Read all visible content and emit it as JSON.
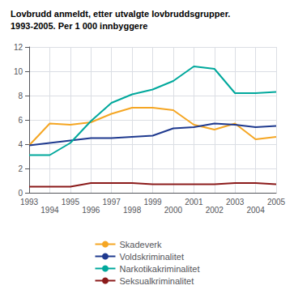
{
  "chart_data": {
    "type": "line",
    "title": "Lovbrudd anmeldt, etter utvalgte lovbruddsgrupper.",
    "subtitle": "1993-2005. Per 1 000 innbyggere",
    "x": [
      1993,
      1994,
      1995,
      1996,
      1997,
      1998,
      1999,
      2000,
      2001,
      2002,
      2003,
      2004,
      2005
    ],
    "series": [
      {
        "name": "Skadeverk",
        "color": "#F5A623",
        "values": [
          3.9,
          5.7,
          5.6,
          5.8,
          6.5,
          7.0,
          7.0,
          6.8,
          5.6,
          5.2,
          5.7,
          4.4,
          4.6
        ]
      },
      {
        "name": "Voldskriminalitet",
        "color": "#1F3A8F",
        "values": [
          3.9,
          4.1,
          4.3,
          4.5,
          4.5,
          4.6,
          4.7,
          5.3,
          5.4,
          5.7,
          5.6,
          5.4,
          5.5
        ]
      },
      {
        "name": "Narkotikakriminalitet",
        "color": "#00A89C",
        "values": [
          3.1,
          3.1,
          4.1,
          5.9,
          7.4,
          8.1,
          8.5,
          9.2,
          10.4,
          10.2,
          8.2,
          8.2,
          8.3
        ]
      },
      {
        "name": "Seksualkriminalitet",
        "color": "#8B1A1A",
        "values": [
          0.5,
          0.5,
          0.5,
          0.8,
          0.8,
          0.8,
          0.7,
          0.7,
          0.7,
          0.7,
          0.8,
          0.8,
          0.7
        ]
      }
    ],
    "xlim": [
      1993,
      2005
    ],
    "xticks": [
      1993,
      1994,
      1995,
      1996,
      1997,
      1998,
      1999,
      2000,
      2001,
      2002,
      2003,
      2004,
      2005
    ],
    "ylim": [
      0,
      12
    ],
    "yticks": [
      0,
      2,
      4,
      6,
      8,
      10,
      12
    ],
    "grid": true,
    "legend": "bottom"
  }
}
